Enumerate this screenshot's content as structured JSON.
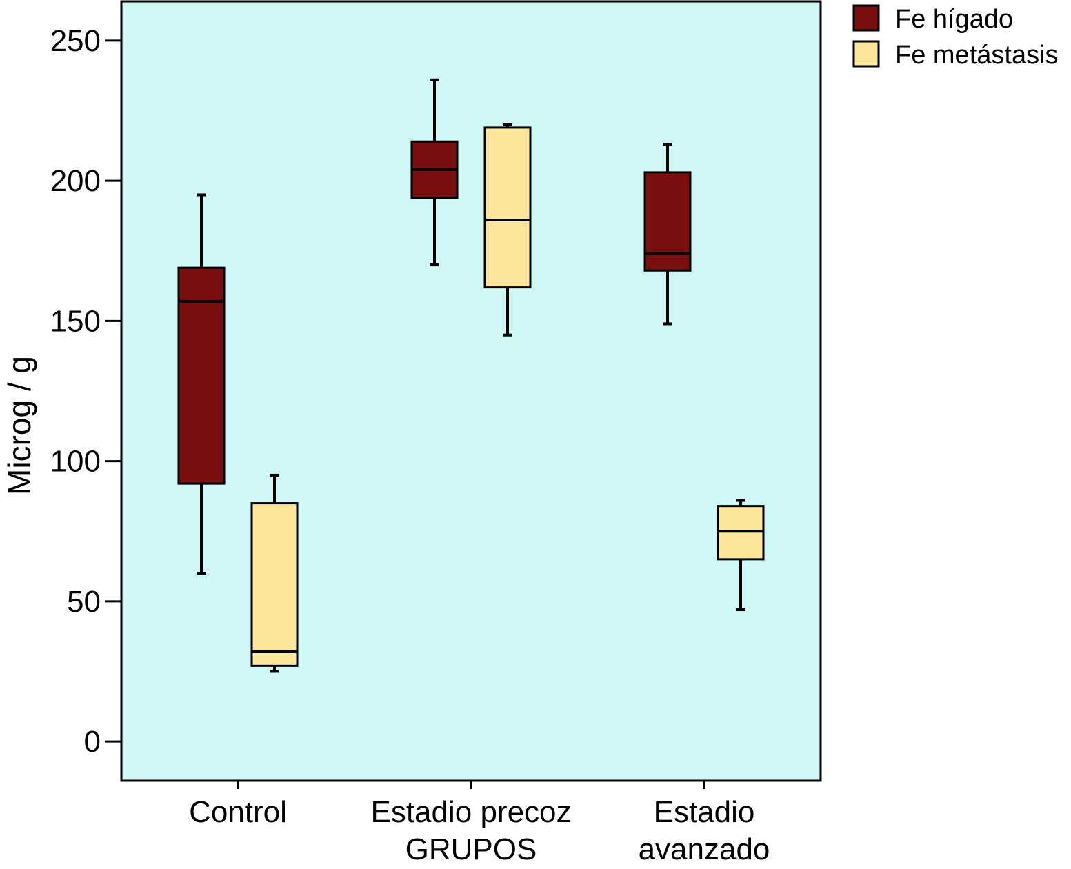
{
  "chart_data": {
    "type": "boxplot",
    "title": "",
    "xlabel": "GRUPOS",
    "ylabel": "Microg / g",
    "ylim": [
      -14,
      264
    ],
    "yticks": [
      0,
      50,
      100,
      150,
      200,
      250
    ],
    "grid": false,
    "legend_position": "top-right-outside",
    "background": "#cff7f6",
    "categories": [
      {
        "label": [
          "Control"
        ]
      },
      {
        "label": [
          "Estadio precoz"
        ]
      },
      {
        "label": [
          "Estadio",
          "avanzado"
        ]
      }
    ],
    "series": [
      {
        "name": "Fe hígado",
        "color": "#7a0f0f",
        "boxes": [
          {
            "whisker_low": 60,
            "q1": 92,
            "median": 157,
            "q3": 169,
            "whisker_high": 195
          },
          {
            "whisker_low": 170,
            "q1": 194,
            "median": 204,
            "q3": 214,
            "whisker_high": 236
          },
          {
            "whisker_low": 149,
            "q1": 168,
            "median": 174,
            "q3": 203,
            "whisker_high": 213
          }
        ]
      },
      {
        "name": "Fe metástasis",
        "color": "#fde69a",
        "boxes": [
          {
            "whisker_low": 25,
            "q1": 27,
            "median": 32,
            "q3": 85,
            "whisker_high": 95
          },
          {
            "whisker_low": 145,
            "q1": 162,
            "median": 186,
            "q3": 219,
            "whisker_high": 220
          },
          {
            "whisker_low": 47,
            "q1": 65,
            "median": 75,
            "q3": 84,
            "whisker_high": 86
          }
        ]
      }
    ]
  }
}
